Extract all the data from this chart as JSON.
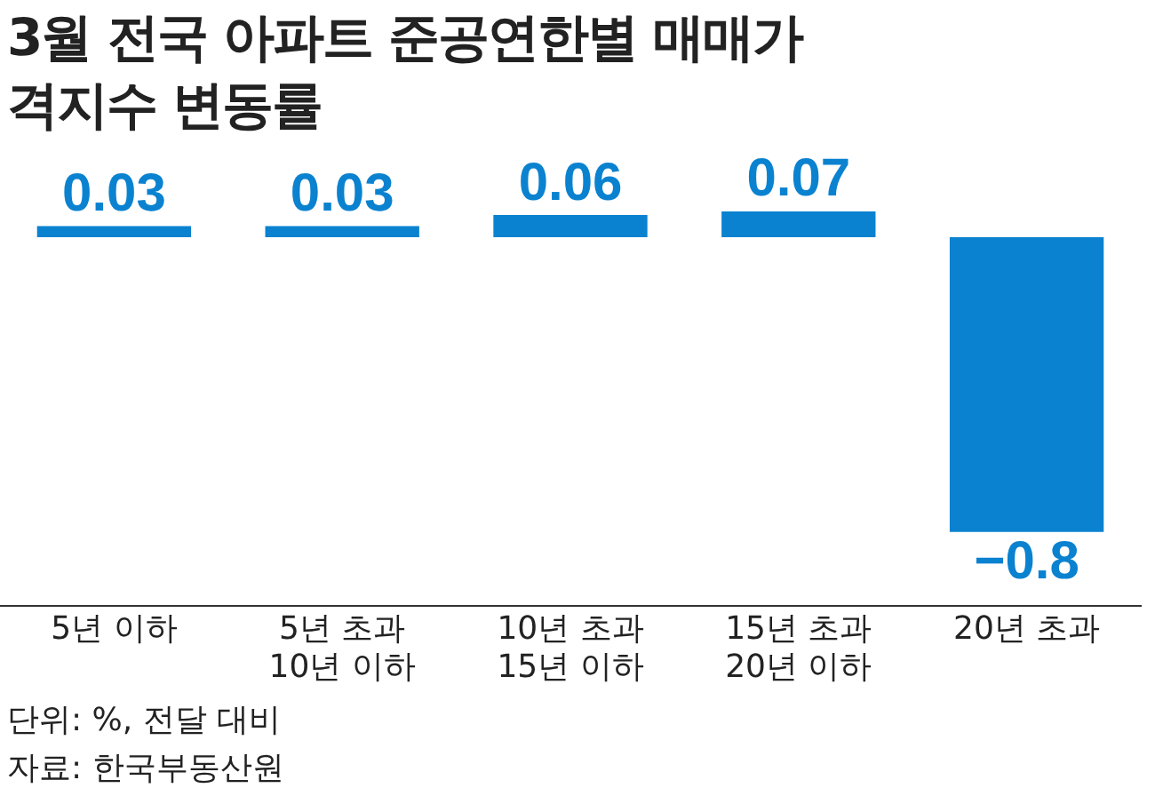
{
  "chart_data": {
    "type": "bar",
    "title": "3월 전국 아파트 준공연한별 매매가격지수 변동률",
    "categories": [
      "5년 이하",
      "5년 초과 10년 이하",
      "10년 초과 15년 이하",
      "15년 초과 20년 이하",
      "20년 초과"
    ],
    "values": [
      0.03,
      0.03,
      0.06,
      0.07,
      -0.8
    ],
    "color": "#0a82d0",
    "data_labels": true,
    "grid": false,
    "legend": false,
    "annotations": [
      "단위: %, 전달 대비",
      "자료: 한국부동산원"
    ]
  }
}
